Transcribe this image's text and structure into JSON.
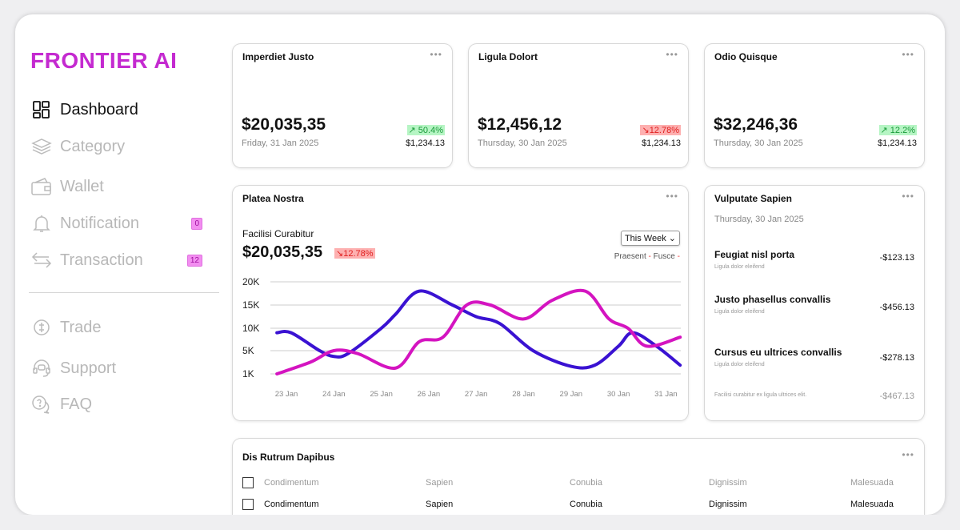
{
  "brand": "FRONTIER AI",
  "sidebar": {
    "items": [
      {
        "label": "Dashboard",
        "icon": "grid-icon"
      },
      {
        "label": "Category",
        "icon": "layers-icon"
      },
      {
        "label": "Wallet",
        "icon": "wallet-icon"
      },
      {
        "label": "Notification",
        "icon": "bell-icon",
        "badge": "0"
      },
      {
        "label": "Transaction",
        "icon": "swap-icon",
        "badge": "12"
      },
      {
        "label": "Trade",
        "icon": "trade-icon"
      },
      {
        "label": "Support",
        "icon": "headset-icon"
      },
      {
        "label": "FAQ",
        "icon": "question-icon"
      }
    ]
  },
  "stats": [
    {
      "title": "Imperdiet Justo",
      "value": "$20,035,35",
      "date": "Friday, 31 Jan 2025",
      "change": "50.4%",
      "dir": "up",
      "sub": "$1,234.13"
    },
    {
      "title": "Ligula Dolort",
      "value": "$12,456,12",
      "date": "Thursday, 30 Jan 2025",
      "change": "12.78%",
      "dir": "down",
      "sub": "$1,234.13"
    },
    {
      "title": "Odio Quisque",
      "value": "$32,246,36",
      "date": "Thursday, 30 Jan 2025",
      "change": "12.2%",
      "dir": "up",
      "sub": "$1,234.13"
    }
  ],
  "more": "•••",
  "chart_card": {
    "title": "Platea Nostra",
    "label": "Facilisi Curabitur",
    "value": "$20,035,35",
    "change": "12.78%",
    "period": "This Week",
    "legend": [
      "Praesent",
      "Fusce"
    ]
  },
  "chart_data": {
    "type": "line",
    "categories": [
      "23 Jan",
      "24 Jan",
      "25 Jan",
      "26 Jan",
      "27 Jan",
      "28 Jan",
      "29 Jan",
      "30 Jan",
      "31 Jan"
    ],
    "yticks": [
      "1K",
      "5K",
      "10K",
      "15K",
      "20K"
    ],
    "ytick_values": [
      1,
      5,
      10,
      15,
      20
    ],
    "ylim": [
      1,
      20
    ],
    "series": [
      {
        "name": "Praesent",
        "color": "#3a12d2",
        "x": [
          -0.2,
          0.1,
          0.7,
          1,
          1.3,
          2,
          2.3,
          2.8,
          3.5,
          4,
          4.5,
          5.2,
          6,
          6.5,
          7,
          7.3,
          7.8,
          8.3
        ],
        "values": [
          9,
          9,
          5,
          4,
          4.5,
          10,
          13,
          18,
          15,
          12.5,
          11,
          5,
          2.3,
          2.5,
          6,
          9,
          6,
          2.5
        ]
      },
      {
        "name": "Fusce",
        "color": "#d414c0",
        "x": [
          -0.2,
          0.5,
          1,
          1.5,
          2.3,
          2.8,
          3.3,
          3.8,
          4.3,
          5,
          5.6,
          6.3,
          6.8,
          7.2,
          7.6,
          8.3
        ],
        "values": [
          1,
          3,
          5,
          4.5,
          2,
          7,
          8,
          15,
          15,
          12,
          16,
          18,
          12,
          10,
          6,
          8
        ]
      }
    ]
  },
  "list_card": {
    "title": "Vulputate Sapien",
    "date": "Thursday, 30 Jan 2025",
    "items": [
      {
        "title": "Feugiat nisl porta",
        "sub": "Ligula dolor eleifend",
        "amount": "-$123.13"
      },
      {
        "title": "Justo phasellus convallis",
        "sub": "Ligula dolor eleifend",
        "amount": "-$456.13"
      },
      {
        "title": "Cursus eu ultrices convallis",
        "sub": "Ligula dolor eleifend",
        "amount": "-$278.13"
      }
    ],
    "footer": "Facilisi curabitur ex ligula ultrices elit.",
    "footer_amount": "-$467.13"
  },
  "table": {
    "title": "Dis Rutrum Dapibus",
    "header": [
      "Condimentum",
      "Sapien",
      "Conubia",
      "Dignissim",
      "Malesuada"
    ],
    "rows": [
      [
        "Condimentum",
        "Sapien",
        "Conubia",
        "Dignissim",
        "Malesuada"
      ]
    ]
  }
}
